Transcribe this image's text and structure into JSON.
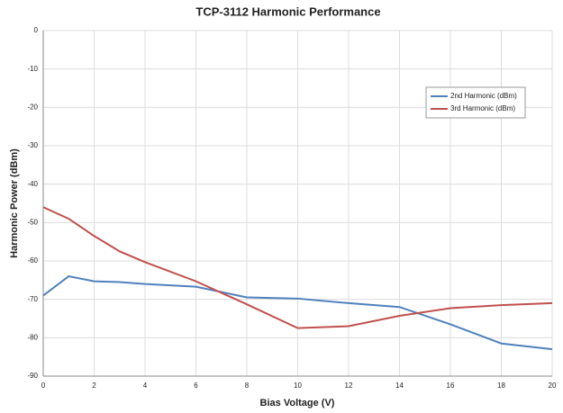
{
  "chart_data": {
    "type": "line",
    "title": "TCP-3112 Harmonic Performance",
    "x_label": "Bias Voltage (V)",
    "y_label": "Harmonic Power (dBm)",
    "x": [
      0,
      1,
      2,
      3,
      4,
      6,
      8,
      10,
      12,
      14,
      16,
      18,
      20
    ],
    "series": [
      {
        "name": "2nd Harmonic (dBm)",
        "color": "#4f81bd",
        "values": [
          -69,
          -64,
          -65.3,
          -65.5,
          -66,
          -66.7,
          -69.5,
          -69.8,
          -71,
          -72,
          -76.5,
          -81.5,
          -83
        ]
      },
      {
        "name": "3rd Harmonic (dBm)",
        "color": "#c0504d",
        "values": [
          -46,
          -49,
          -53.5,
          -57.5,
          -60.3,
          -65.3,
          -71.3,
          -77.5,
          -77,
          -74.3,
          -72.3,
          -71.5,
          -71
        ]
      }
    ],
    "xlim": [
      0,
      20
    ],
    "xticks": [
      0,
      2,
      4,
      6,
      8,
      10,
      12,
      14,
      16,
      18,
      20
    ],
    "ylim": [
      -90,
      0
    ],
    "yticks": [
      0,
      -10,
      -20,
      -30,
      -40,
      -50,
      -60,
      -70,
      -80,
      -90
    ],
    "grid": true,
    "legend": "upper right"
  }
}
